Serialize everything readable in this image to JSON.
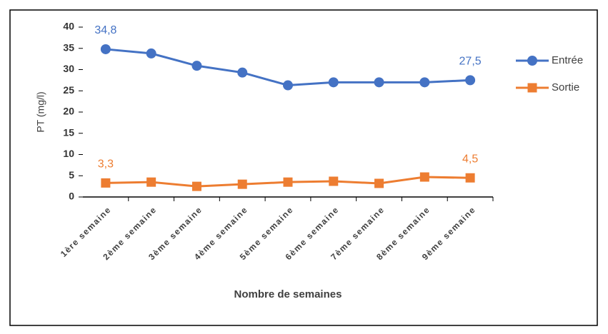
{
  "chart_data": {
    "type": "line",
    "categories": [
      "1ère semaine",
      "2ème semaine",
      "3ème semaine",
      "4ème semaine",
      "5ème semaine",
      "6ème semaine",
      "7ème semaine",
      "8ème semaine",
      "9ème semaine"
    ],
    "series": [
      {
        "name": "Entrée",
        "color": "#4472c4",
        "marker": "circle",
        "values": [
          34.8,
          33.8,
          30.9,
          29.3,
          26.3,
          27,
          27,
          27,
          27.5
        ],
        "value_labels": [
          "34,8",
          null,
          null,
          null,
          null,
          null,
          null,
          null,
          "27,5"
        ]
      },
      {
        "name": "Sortie",
        "color": "#ed7d31",
        "marker": "square",
        "values": [
          3.3,
          3.5,
          2.5,
          3,
          3.5,
          3.7,
          3.2,
          4.7,
          4.5
        ],
        "value_labels": [
          "3,3",
          null,
          null,
          null,
          null,
          null,
          null,
          null,
          "4,5"
        ]
      }
    ],
    "xlabel": "Nombre de semaines",
    "ylabel": "PT (mg/l)",
    "ylim": [
      0,
      40
    ],
    "yticks": [
      0,
      5,
      10,
      15,
      20,
      25,
      30,
      35,
      40
    ],
    "grid": false,
    "legend": "right"
  }
}
